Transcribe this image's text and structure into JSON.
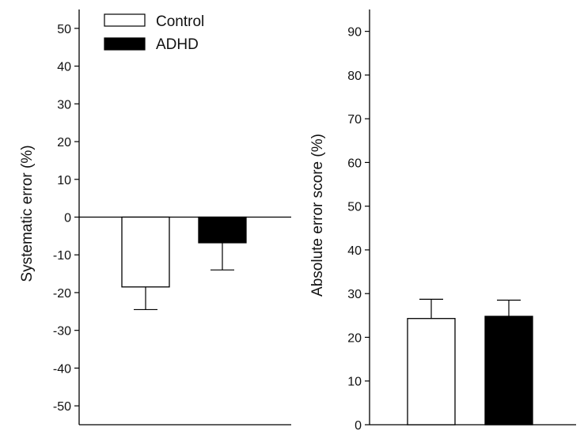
{
  "chart_data": [
    {
      "type": "bar",
      "categories": [
        "Control",
        "ADHD"
      ],
      "series": [
        {
          "name": "",
          "values": [
            -18.5,
            -6.8
          ]
        }
      ],
      "error_bars": [
        6.0,
        7.2
      ],
      "bar_colors": [
        "#ffffff",
        "#000000"
      ],
      "title": "",
      "xlabel": "",
      "ylabel": "Systematic error (%)",
      "ylim": [
        -55,
        55
      ],
      "yticks": [
        -50,
        -40,
        -30,
        -20,
        -10,
        0,
        10,
        20,
        30,
        40,
        50
      ],
      "zero_line": true,
      "grid": false,
      "legend": {
        "placement": "top-left",
        "entries": [
          {
            "label": "Control",
            "color": "#ffffff"
          },
          {
            "label": "ADHD",
            "color": "#000000"
          }
        ]
      }
    },
    {
      "type": "bar",
      "categories": [
        "Control",
        "ADHD"
      ],
      "series": [
        {
          "name": "",
          "values": [
            24.3,
            24.8
          ]
        }
      ],
      "error_bars": [
        4.4,
        3.7
      ],
      "bar_colors": [
        "#ffffff",
        "#000000"
      ],
      "title": "",
      "xlabel": "",
      "ylabel": "Absolute error score (%)",
      "ylim": [
        0,
        95
      ],
      "yticks": [
        0,
        10,
        20,
        30,
        40,
        50,
        60,
        70,
        80,
        90
      ],
      "grid": false
    }
  ]
}
